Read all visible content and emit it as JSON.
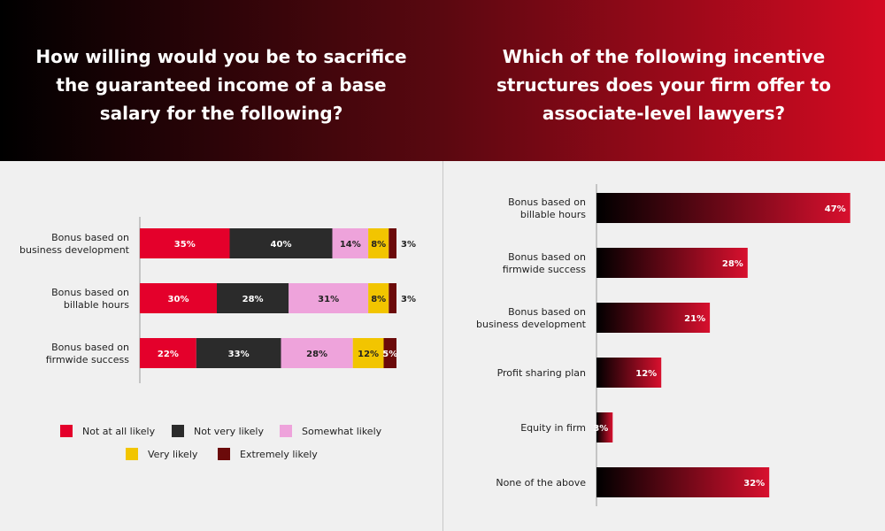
{
  "header": {
    "left_title": "How willing would you be to sacrifice the guaranteed income of a base salary for the following?",
    "right_title": "Which of the following incentive structures does your firm offer to associate-level lawyers?"
  },
  "chart_data": [
    {
      "type": "bar",
      "orientation": "horizontal",
      "stacked": true,
      "title": "How willing would you be to sacrifice the guaranteed income of a base salary for the following?",
      "categories": [
        [
          "Bonus based on",
          "business development"
        ],
        [
          "Bonus based on",
          "billable hours"
        ],
        [
          "Bonus based on",
          "firmwide success"
        ]
      ],
      "series": [
        {
          "name": "Not at all likely",
          "color": "#e4002b",
          "values": [
            35,
            30,
            22
          ]
        },
        {
          "name": "Not very likely",
          "color": "#2b2b2b",
          "values": [
            40,
            28,
            33
          ]
        },
        {
          "name": "Somewhat likely",
          "color": "#eea3db",
          "values": [
            14,
            31,
            28
          ]
        },
        {
          "name": "Very likely",
          "color": "#f2c500",
          "values": [
            8,
            8,
            12
          ]
        },
        {
          "name": "Extremely likely",
          "color": "#6b0a0a",
          "values": [
            3,
            3,
            5
          ]
        }
      ],
      "value_suffix": "%",
      "legend_position": "bottom",
      "grid": false
    },
    {
      "type": "bar",
      "orientation": "horizontal",
      "title": "Which of the following incentive structures does your firm offer to associate-level lawyers?",
      "categories": [
        [
          "Bonus based on",
          "billable hours"
        ],
        [
          "Bonus based on",
          "firmwide success"
        ],
        [
          "Bonus based on",
          "business development"
        ],
        [
          "Profit sharing plan"
        ],
        [
          "Equity in firm"
        ],
        [
          "None of the above"
        ]
      ],
      "values": [
        47,
        28,
        21,
        12,
        3,
        32
      ],
      "value_suffix": "%",
      "colors": {
        "gradient_start": "#000000",
        "gradient_end": "#d8102e"
      },
      "legend_position": "none",
      "grid": false
    }
  ]
}
